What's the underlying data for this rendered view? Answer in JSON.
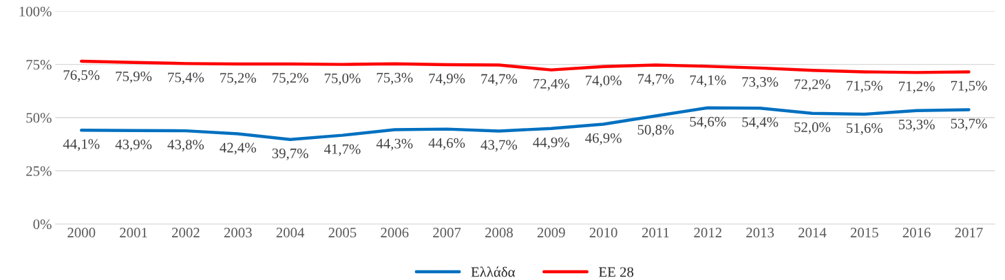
{
  "chart_data": {
    "type": "line",
    "categories": [
      "2000",
      "2001",
      "2002",
      "2003",
      "2004",
      "2005",
      "2006",
      "2007",
      "2008",
      "2009",
      "2010",
      "2011",
      "2012",
      "2013",
      "2014",
      "2015",
      "2016",
      "2017"
    ],
    "series": [
      {
        "name": "Ελλάδα",
        "color": "#0070c0",
        "values": [
          44.1,
          43.9,
          43.8,
          42.4,
          39.7,
          41.7,
          44.3,
          44.6,
          43.7,
          44.9,
          46.9,
          50.8,
          54.6,
          54.4,
          52.0,
          51.6,
          53.3,
          53.7
        ],
        "value_labels": [
          "44,1%",
          "43,9%",
          "43,8%",
          "42,4%",
          "39,7%",
          "41,7%",
          "44,3%",
          "44,6%",
          "43,7%",
          "44,9%",
          "46,9%",
          "50,8%",
          "54,6%",
          "54,4%",
          "52,0%",
          "51,6%",
          "53,3%",
          "53,7%"
        ]
      },
      {
        "name": "ΕΕ 28",
        "color": "#ff0000",
        "values": [
          76.5,
          75.9,
          75.4,
          75.2,
          75.2,
          75.0,
          75.3,
          74.9,
          74.7,
          72.4,
          74.0,
          74.7,
          74.1,
          73.3,
          72.2,
          71.5,
          71.2,
          71.5
        ],
        "value_labels": [
          "76,5%",
          "75,9%",
          "75,4%",
          "75,2%",
          "75,2%",
          "75,0%",
          "75,3%",
          "74,9%",
          "74,7%",
          "72,4%",
          "74,0%",
          "74,7%",
          "74,1%",
          "73,3%",
          "72,2%",
          "71,5%",
          "71,2%",
          "71,5%"
        ]
      }
    ],
    "ylim": [
      0,
      100
    ],
    "yticks": [
      {
        "value": 0,
        "label": "0%"
      },
      {
        "value": 25,
        "label": "25%"
      },
      {
        "value": 50,
        "label": "50%"
      },
      {
        "value": 75,
        "label": "75%"
      },
      {
        "value": 100,
        "label": "100%"
      }
    ],
    "grid": "y",
    "legend": "bottom",
    "marker": "none",
    "line_style": "solid"
  }
}
